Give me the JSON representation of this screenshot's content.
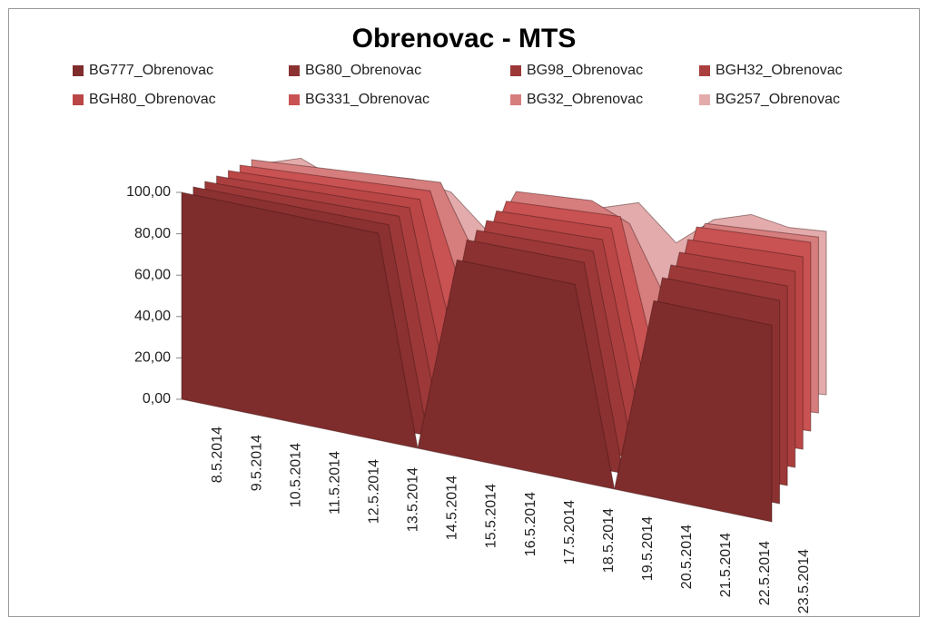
{
  "chart_data": {
    "type": "area3d",
    "title": "Obrenovac - MTS",
    "categories": [
      "8.5.2014",
      "9.5.2014",
      "10.5.2014",
      "11.5.2014",
      "12.5.2014",
      "13.5.2014",
      "14.5.2014",
      "15.5.2014",
      "16.5.2014",
      "17.5.2014",
      "18.5.2014",
      "19.5.2014",
      "20.5.2014",
      "21.5.2014",
      "22.5.2014",
      "23.5.2014"
    ],
    "series": [
      {
        "name": "BG777_Obrenovac",
        "color": "#7f2c2c",
        "values": [
          100,
          100,
          100,
          100,
          100,
          100,
          0,
          95,
          95,
          95,
          95,
          0,
          95,
          95,
          95,
          95
        ]
      },
      {
        "name": "BG80_Obrenovac",
        "color": "#8c3131",
        "values": [
          100,
          100,
          100,
          100,
          100,
          100,
          0,
          100,
          100,
          100,
          100,
          0,
          100,
          100,
          100,
          100
        ]
      },
      {
        "name": "BG98_Obrenovac",
        "color": "#9c3838",
        "values": [
          100,
          100,
          100,
          100,
          100,
          100,
          5,
          100,
          100,
          100,
          100,
          5,
          100,
          100,
          100,
          100
        ]
      },
      {
        "name": "BGH32_Obrenovac",
        "color": "#ab3f3f",
        "values": [
          100,
          100,
          100,
          100,
          100,
          100,
          10,
          100,
          100,
          100,
          100,
          10,
          100,
          100,
          100,
          100
        ]
      },
      {
        "name": "BGH80_Obrenovac",
        "color": "#ba4646",
        "values": [
          100,
          100,
          100,
          100,
          100,
          100,
          20,
          100,
          100,
          100,
          100,
          10,
          100,
          100,
          100,
          100
        ]
      },
      {
        "name": "BG331_Obrenovac",
        "color": "#c95252",
        "values": [
          100,
          100,
          100,
          100,
          100,
          100,
          40,
          100,
          100,
          100,
          100,
          20,
          100,
          100,
          100,
          100
        ]
      },
      {
        "name": "BG32_Obrenovac",
        "color": "#d67d7d",
        "values": [
          100,
          100,
          100,
          100,
          100,
          100,
          60,
          100,
          100,
          100,
          90,
          50,
          95,
          95,
          95,
          95
        ]
      },
      {
        "name": "BG257_Obrenovac",
        "color": "#e3abab",
        "values": [
          95,
          100,
          90,
          95,
          95,
          90,
          70,
          90,
          85,
          90,
          95,
          75,
          90,
          95,
          90,
          90
        ]
      }
    ],
    "ylim": [
      0,
      100
    ],
    "yticks": [
      {
        "value": 0,
        "label": "0,00"
      },
      {
        "value": 20,
        "label": "20,00"
      },
      {
        "value": 40,
        "label": "40,00"
      },
      {
        "value": 60,
        "label": "60,00"
      },
      {
        "value": 80,
        "label": "80,00"
      },
      {
        "value": 100,
        "label": "100,00"
      }
    ]
  }
}
